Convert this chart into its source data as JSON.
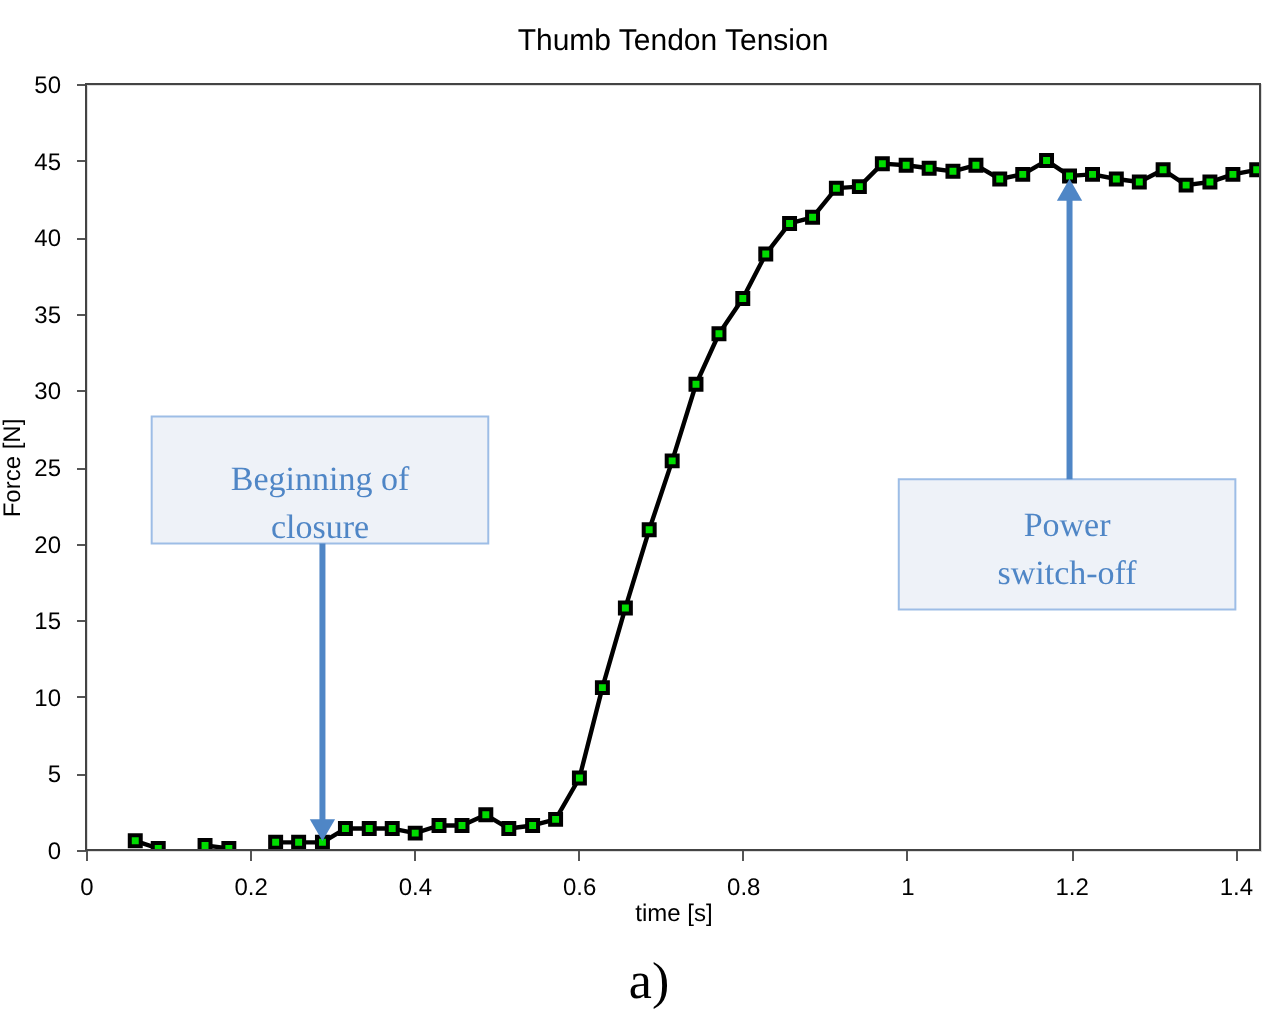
{
  "chart_data": {
    "type": "line",
    "title": "Thumb Tendon Tension",
    "xlabel": "time [s]",
    "ylabel": "Force [N]",
    "x": [
      0.06,
      0.088,
      0.117,
      0.145,
      0.174,
      0.202,
      0.231,
      0.259,
      0.288,
      0.316,
      0.345,
      0.373,
      0.401,
      0.43,
      0.458,
      0.487,
      0.515,
      0.544,
      0.572,
      0.601,
      0.629,
      0.657,
      0.686,
      0.714,
      0.743,
      0.771,
      0.8,
      0.828,
      0.857,
      0.885,
      0.914,
      0.942,
      0.97,
      0.999,
      1.027,
      1.056,
      1.084,
      1.113,
      1.141,
      1.17,
      1.198,
      1.226,
      1.255,
      1.283,
      1.312,
      1.34,
      1.369,
      1.397,
      1.426
    ],
    "series": [
      {
        "color": "#000000",
        "values": [
          0.6,
          0.1,
          null,
          0.3,
          0.1,
          null,
          0.5,
          0.5,
          0.5,
          1.4,
          1.4,
          1.4,
          1.1,
          1.6,
          1.6,
          2.3,
          1.4,
          1.6,
          2.0,
          4.7,
          10.6,
          15.8,
          20.9,
          25.4,
          30.4,
          33.7,
          36.0,
          38.9,
          40.9,
          41.3,
          43.2,
          43.3,
          44.8,
          44.7,
          44.5,
          44.3,
          44.7,
          43.8,
          44.1,
          45.0,
          44.0,
          44.1,
          43.8,
          43.6,
          44.4,
          43.4,
          43.6,
          44.1,
          44.4
        ]
      }
    ],
    "marker": "square",
    "line_style": "solid",
    "grid": false,
    "legend": false,
    "xlim": [
      0,
      1.43
    ],
    "ylim": [
      0,
      50
    ],
    "xticks": [
      0,
      0.2,
      0.4,
      0.6,
      0.8,
      1,
      1.2,
      1.4
    ],
    "yticks": [
      0,
      5,
      10,
      15,
      20,
      25,
      30,
      35,
      40,
      45,
      50
    ],
    "annotations": [
      {
        "text": "Beginning of\nclosure",
        "x": 0.288,
        "y": 0.5
      },
      {
        "text": "Power\nswitch-off",
        "x": 1.198,
        "y": 44.0
      },
      "a)"
    ]
  }
}
